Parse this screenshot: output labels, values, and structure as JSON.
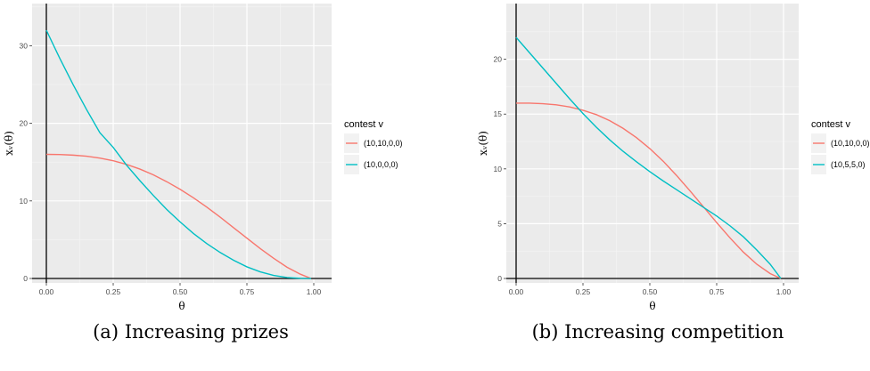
{
  "chart_data": [
    {
      "type": "line",
      "caption": "(a) Increasing prizes",
      "xlabel": "θ",
      "ylabel": "xᵥ(θ)",
      "xlim": [
        0,
        1
      ],
      "ylim": [
        0,
        32
      ],
      "xticks": [
        "0.00",
        "0.25",
        "0.50",
        "0.75",
        "1.00"
      ],
      "yticks": [
        "0",
        "10",
        "20",
        "30"
      ],
      "grid": true,
      "legend": {
        "title": "contest v",
        "placement": "right"
      },
      "series": [
        {
          "name": "(10,10,0,0)",
          "color": "#F8766D",
          "x": [
            0,
            0.05,
            0.1,
            0.15,
            0.2,
            0.25,
            0.3,
            0.35,
            0.4,
            0.45,
            0.5,
            0.55,
            0.6,
            0.65,
            0.7,
            0.75,
            0.8,
            0.85,
            0.9,
            0.95,
            0.99
          ],
          "y": [
            16,
            15.98,
            15.9,
            15.76,
            15.52,
            15.18,
            14.7,
            14.1,
            13.36,
            12.48,
            11.5,
            10.4,
            9.2,
            7.9,
            6.55,
            5.2,
            3.85,
            2.6,
            1.45,
            0.55,
            0
          ]
        },
        {
          "name": "(10,0,0,0)",
          "color": "#00BFC4",
          "x": [
            0,
            0.05,
            0.1,
            0.15,
            0.2,
            0.25,
            0.3,
            0.35,
            0.4,
            0.45,
            0.5,
            0.55,
            0.6,
            0.65,
            0.7,
            0.75,
            0.8,
            0.85,
            0.9,
            0.95,
            0.99
          ],
          "y": [
            32,
            28.4,
            25,
            21.8,
            18.8,
            16.9,
            14.6,
            12.6,
            10.7,
            8.9,
            7.3,
            5.8,
            4.5,
            3.35,
            2.35,
            1.5,
            0.85,
            0.4,
            0.12,
            0.02,
            0
          ]
        }
      ]
    },
    {
      "type": "line",
      "caption": "(b) Increasing competition",
      "xlabel": "θ",
      "ylabel": "xᵥ(θ)",
      "xlim": [
        0,
        1
      ],
      "ylim": [
        0,
        22
      ],
      "xticks": [
        "0.00",
        "0.25",
        "0.50",
        "0.75",
        "1.00"
      ],
      "yticks": [
        "0",
        "5",
        "10",
        "15",
        "20"
      ],
      "grid": true,
      "legend": {
        "title": "contest v",
        "placement": "right"
      },
      "series": [
        {
          "name": "(10,10,0,0)",
          "color": "#F8766D",
          "x": [
            0,
            0.05,
            0.1,
            0.15,
            0.2,
            0.25,
            0.3,
            0.35,
            0.4,
            0.45,
            0.5,
            0.55,
            0.6,
            0.65,
            0.7,
            0.75,
            0.8,
            0.85,
            0.9,
            0.95,
            0.99
          ],
          "y": [
            16,
            16,
            15.95,
            15.85,
            15.65,
            15.35,
            14.95,
            14.4,
            13.7,
            12.85,
            11.85,
            10.7,
            9.4,
            8.0,
            6.55,
            5.1,
            3.7,
            2.4,
            1.3,
            0.45,
            0
          ]
        },
        {
          "name": "(10,5,5,0)",
          "color": "#00BFC4",
          "x": [
            0,
            0.05,
            0.1,
            0.15,
            0.2,
            0.25,
            0.3,
            0.35,
            0.4,
            0.45,
            0.5,
            0.55,
            0.6,
            0.65,
            0.7,
            0.75,
            0.8,
            0.85,
            0.9,
            0.95,
            0.99
          ],
          "y": [
            22,
            20.6,
            19.2,
            17.8,
            16.4,
            15.05,
            13.8,
            12.65,
            11.6,
            10.65,
            9.75,
            8.9,
            8.1,
            7.3,
            6.5,
            5.7,
            4.8,
            3.8,
            2.6,
            1.3,
            0
          ]
        }
      ]
    }
  ]
}
